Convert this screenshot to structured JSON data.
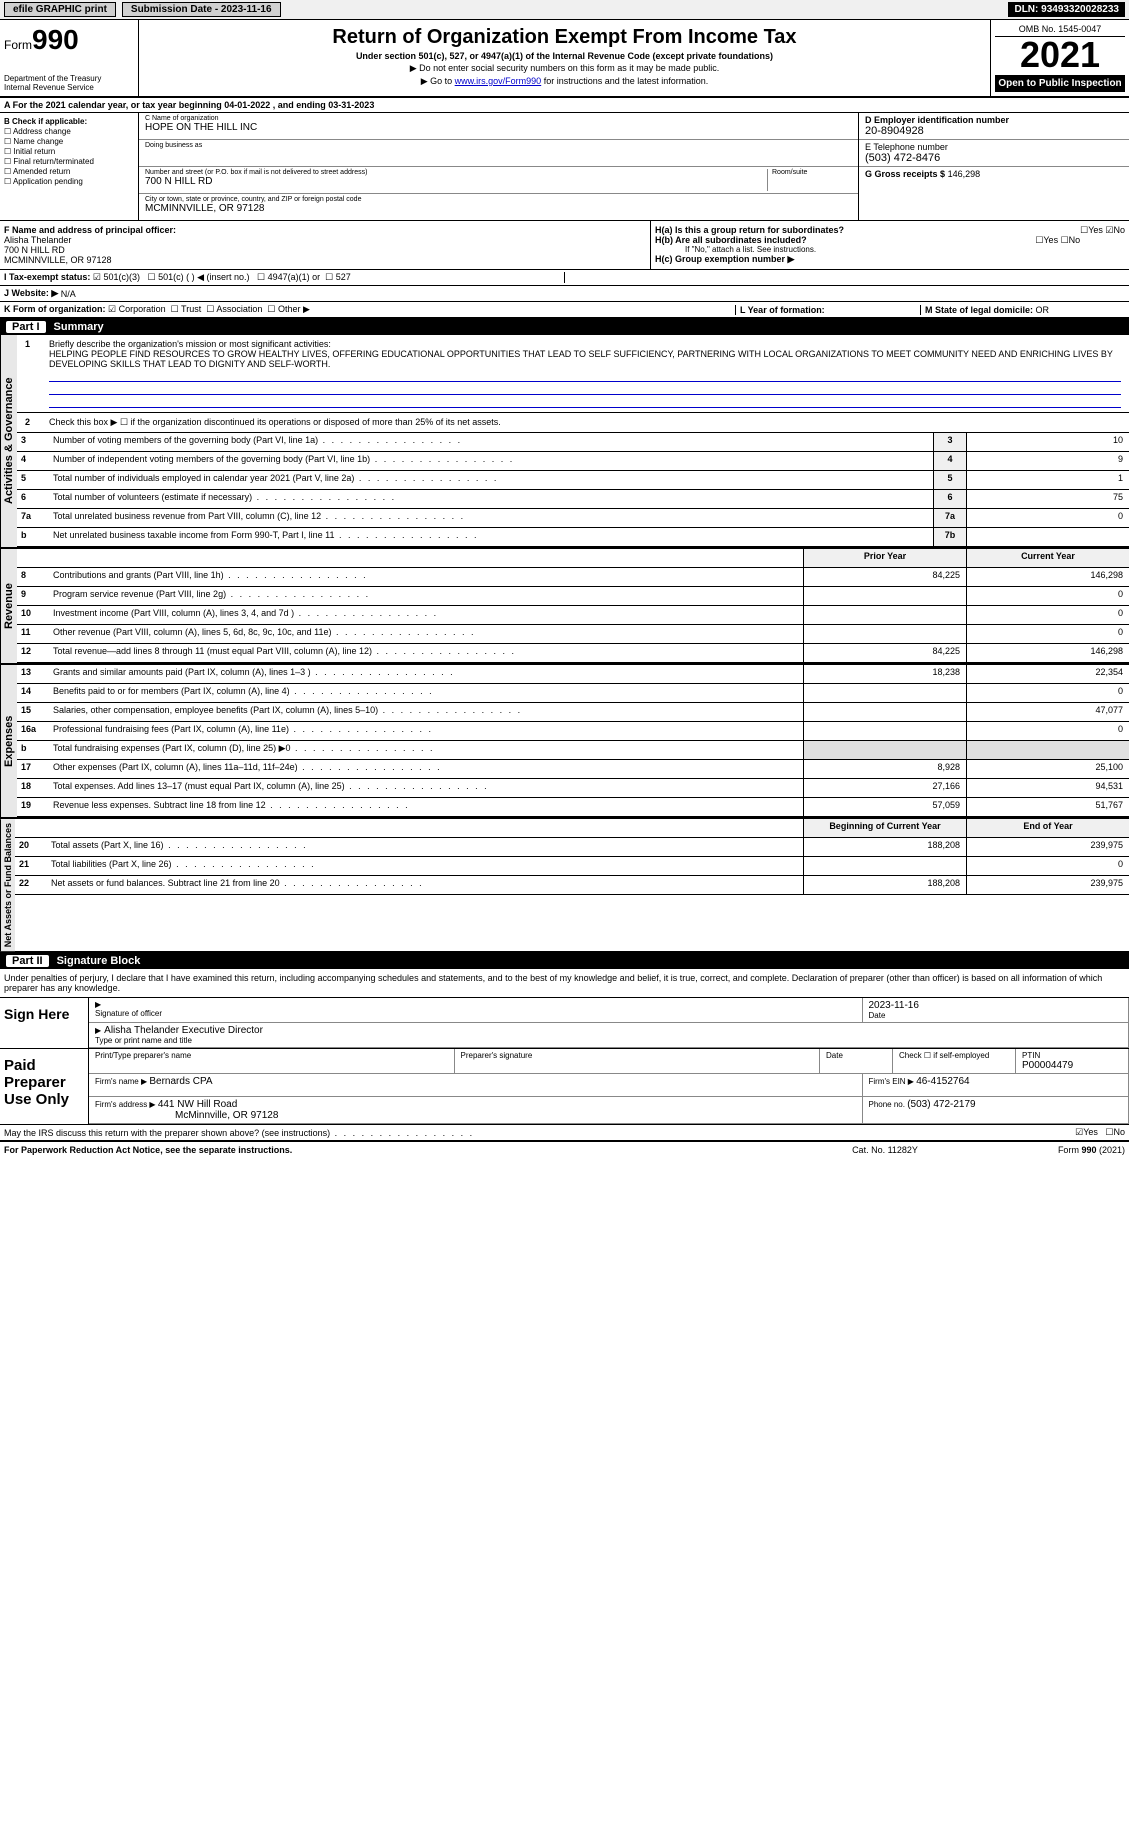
{
  "topbar": {
    "efile_label": "efile GRAPHIC print",
    "sub_date_label": "Submission Date - 2023-11-16",
    "dln_label": "DLN: 93493320028233"
  },
  "header": {
    "form_label": "Form",
    "form_number": "990",
    "dept1": "Department of the Treasury",
    "dept2": "Internal Revenue Service",
    "title": "Return of Organization Exempt From Income Tax",
    "subtitle": "Under section 501(c), 527, or 4947(a)(1) of the Internal Revenue Code (except private foundations)",
    "note1": "▶ Do not enter social security numbers on this form as it may be made public.",
    "note2_pre": "▶ Go to ",
    "note2_link": "www.irs.gov/Form990",
    "note2_post": " for instructions and the latest information.",
    "omb": "OMB No. 1545-0047",
    "year": "2021",
    "open_public": "Open to Public Inspection"
  },
  "line_a": "A For the 2021 calendar year, or tax year beginning 04-01-2022   , and ending 03-31-2023",
  "section_b": {
    "label": "B Check if applicable:",
    "opts": [
      "Address change",
      "Name change",
      "Initial return",
      "Final return/terminated",
      "Amended return",
      "Application pending"
    ]
  },
  "section_c": {
    "name_label": "C Name of organization",
    "name": "HOPE ON THE HILL INC",
    "dba_label": "Doing business as",
    "dba": "",
    "street_label": "Number and street (or P.O. box if mail is not delivered to street address)",
    "room_label": "Room/suite",
    "street": "700 N HILL RD",
    "city_label": "City or town, state or province, country, and ZIP or foreign postal code",
    "city": "MCMINNVILLE, OR  97128"
  },
  "section_d": {
    "label": "D Employer identification number",
    "value": "20-8904928"
  },
  "section_e": {
    "label": "E Telephone number",
    "value": "(503) 472-8476"
  },
  "section_g": {
    "label": "G Gross receipts $",
    "value": "146,298"
  },
  "section_f": {
    "label": "F Name and address of principal officer:",
    "name": "Alisha Thelander",
    "addr1": "700 N HILL RD",
    "addr2": "MCMINNVILLE, OR  97128"
  },
  "section_h": {
    "ha": "H(a)  Is this a group return for subordinates?",
    "ha_yes": "Yes",
    "ha_no": "No",
    "hb": "H(b)  Are all subordinates included?",
    "hb_note": "If \"No,\" attach a list. See instructions.",
    "hc": "H(c)  Group exemption number ▶"
  },
  "section_i": {
    "label": "I  Tax-exempt status:",
    "opt1": "501(c)(3)",
    "opt2": "501(c) (  ) ◀ (insert no.)",
    "opt3": "4947(a)(1) or",
    "opt4": "527"
  },
  "section_j": {
    "label": "J  Website: ▶",
    "value": "N/A"
  },
  "section_k": {
    "label": "K Form of organization:",
    "opts": [
      "Corporation",
      "Trust",
      "Association",
      "Other ▶"
    ]
  },
  "section_l": {
    "label": "L Year of formation:",
    "value": ""
  },
  "section_m": {
    "label": "M State of legal domicile:",
    "value": "OR"
  },
  "part1": {
    "header": "Summary",
    "line1_label": "Briefly describe the organization's mission or most significant activities:",
    "line1_text": "HELPING PEOPLE FIND RESOURCES TO GROW HEALTHY LIVES, OFFERING EDUCATIONAL OPPORTUNITIES THAT LEAD TO SELF SUFFICIENCY, PARTNERING WITH LOCAL ORGANIZATIONS TO MEET COMMUNITY NEED AND ENRICHING LIVES BY DEVELOPING SKILLS THAT LEAD TO DIGNITY AND SELF-WORTH.",
    "line2": "Check this box ▶ ☐  if the organization discontinued its operations or disposed of more than 25% of its net assets.",
    "rows_gov": [
      {
        "n": "3",
        "t": "Number of voting members of the governing body (Part VI, line 1a)",
        "box": "3",
        "v": "10"
      },
      {
        "n": "4",
        "t": "Number of independent voting members of the governing body (Part VI, line 1b)",
        "box": "4",
        "v": "9"
      },
      {
        "n": "5",
        "t": "Total number of individuals employed in calendar year 2021 (Part V, line 2a)",
        "box": "5",
        "v": "1"
      },
      {
        "n": "6",
        "t": "Total number of volunteers (estimate if necessary)",
        "box": "6",
        "v": "75"
      },
      {
        "n": "7a",
        "t": "Total unrelated business revenue from Part VIII, column (C), line 12",
        "box": "7a",
        "v": "0"
      },
      {
        "n": "b",
        "t": "Net unrelated business taxable income from Form 990-T, Part I, line 11",
        "box": "7b",
        "v": ""
      }
    ],
    "col_prior": "Prior Year",
    "col_current": "Current Year",
    "rows_rev": [
      {
        "n": "8",
        "t": "Contributions and grants (Part VIII, line 1h)",
        "p": "84,225",
        "c": "146,298"
      },
      {
        "n": "9",
        "t": "Program service revenue (Part VIII, line 2g)",
        "p": "",
        "c": "0"
      },
      {
        "n": "10",
        "t": "Investment income (Part VIII, column (A), lines 3, 4, and 7d )",
        "p": "",
        "c": "0"
      },
      {
        "n": "11",
        "t": "Other revenue (Part VIII, column (A), lines 5, 6d, 8c, 9c, 10c, and 11e)",
        "p": "",
        "c": "0"
      },
      {
        "n": "12",
        "t": "Total revenue—add lines 8 through 11 (must equal Part VIII, column (A), line 12)",
        "p": "84,225",
        "c": "146,298"
      }
    ],
    "rows_exp": [
      {
        "n": "13",
        "t": "Grants and similar amounts paid (Part IX, column (A), lines 1–3 )",
        "p": "18,238",
        "c": "22,354"
      },
      {
        "n": "14",
        "t": "Benefits paid to or for members (Part IX, column (A), line 4)",
        "p": "",
        "c": "0"
      },
      {
        "n": "15",
        "t": "Salaries, other compensation, employee benefits (Part IX, column (A), lines 5–10)",
        "p": "",
        "c": "47,077"
      },
      {
        "n": "16a",
        "t": "Professional fundraising fees (Part IX, column (A), line 11e)",
        "p": "",
        "c": "0"
      },
      {
        "n": "b",
        "t": "Total fundraising expenses (Part IX, column (D), line 25) ▶0",
        "p": "shade",
        "c": "shade"
      },
      {
        "n": "17",
        "t": "Other expenses (Part IX, column (A), lines 11a–11d, 11f–24e)",
        "p": "8,928",
        "c": "25,100"
      },
      {
        "n": "18",
        "t": "Total expenses. Add lines 13–17 (must equal Part IX, column (A), line 25)",
        "p": "27,166",
        "c": "94,531"
      },
      {
        "n": "19",
        "t": "Revenue less expenses. Subtract line 18 from line 12",
        "p": "57,059",
        "c": "51,767"
      }
    ],
    "col_begin": "Beginning of Current Year",
    "col_end": "End of Year",
    "rows_net": [
      {
        "n": "20",
        "t": "Total assets (Part X, line 16)",
        "p": "188,208",
        "c": "239,975"
      },
      {
        "n": "21",
        "t": "Total liabilities (Part X, line 26)",
        "p": "",
        "c": "0"
      },
      {
        "n": "22",
        "t": "Net assets or fund balances. Subtract line 21 from line 20",
        "p": "188,208",
        "c": "239,975"
      }
    ]
  },
  "vert_labels": {
    "gov": "Activities & Governance",
    "rev": "Revenue",
    "exp": "Expenses",
    "net": "Net Assets or Fund Balances"
  },
  "part2": {
    "header": "Signature Block",
    "declare": "Under penalties of perjury, I declare that I have examined this return, including accompanying schedules and statements, and to the best of my knowledge and belief, it is true, correct, and complete. Declaration of preparer (other than officer) is based on all information of which preparer has any knowledge.",
    "sign_here": "Sign Here",
    "sig_officer_label": "Signature of officer",
    "sig_date": "2023-11-16",
    "date_label": "Date",
    "officer_name": "Alisha Thelander  Executive Director",
    "officer_name_label": "Type or print name and title",
    "paid_label": "Paid Preparer Use Only",
    "prep_name_label": "Print/Type preparer's name",
    "prep_name": "",
    "prep_sig_label": "Preparer's signature",
    "prep_date_label": "Date",
    "self_emp_label": "Check ☐ if self-employed",
    "ptin_label": "PTIN",
    "ptin": "P00004479",
    "firm_name_label": "Firm's name   ▶",
    "firm_name": "Bernards CPA",
    "firm_ein_label": "Firm's EIN ▶",
    "firm_ein": "46-4152764",
    "firm_addr_label": "Firm's address ▶",
    "firm_addr1": "441 NW Hill Road",
    "firm_addr2": "McMinnville, OR  97128",
    "phone_label": "Phone no.",
    "phone": "(503) 472-2179",
    "discuss": "May the IRS discuss this return with the preparer shown above? (see instructions)",
    "discuss_yes": "Yes",
    "discuss_no": "No"
  },
  "footer": {
    "left": "For Paperwork Reduction Act Notice, see the separate instructions.",
    "mid": "Cat. No. 11282Y",
    "right": "Form 990 (2021)"
  },
  "colors": {
    "bg": "#ffffff",
    "text": "#000000",
    "link": "#0000cc",
    "shade": "#e0e0e0",
    "header_bg": "#000000"
  }
}
